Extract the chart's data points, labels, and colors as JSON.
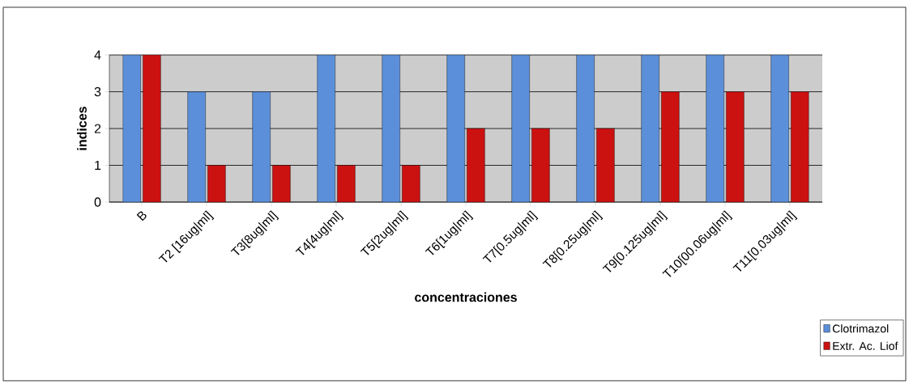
{
  "chart_data": {
    "type": "bar",
    "xlabel": "concentraciones",
    "ylabel": "indices",
    "categories": [
      "B",
      "T2 [16ug|ml]",
      "T3[8ug|ml]",
      "T4[4ug|ml]",
      "T5[2ug|ml]",
      "T6[1ug|ml]",
      "T7[0.5ug|ml]",
      "T8[0.25ug|ml]",
      "T9[0.125ug|ml]",
      "T10[00.06ug|ml]",
      "T11[0.03ug|ml]"
    ],
    "series": [
      {
        "name": "Clotrimazol",
        "color": "#5b8fd9",
        "values": [
          4,
          3,
          3,
          4,
          4,
          4,
          4,
          4,
          4,
          4,
          4
        ]
      },
      {
        "name": "Extr. Ac. Liof",
        "color": "#cc1111",
        "values": [
          4,
          1,
          1,
          1,
          1,
          2,
          2,
          2,
          3,
          3,
          3
        ]
      }
    ],
    "ylim": [
      0,
      4
    ],
    "yticks": [
      0,
      1,
      2,
      3,
      4
    ],
    "grid": "y",
    "legend": "bottom right"
  }
}
